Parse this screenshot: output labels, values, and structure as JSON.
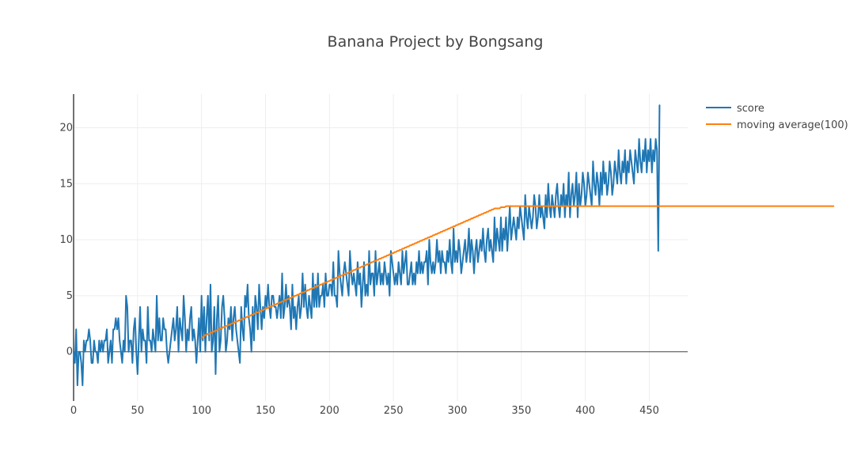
{
  "chart_data": {
    "type": "line",
    "title": "Banana Project by Bongsang",
    "xlabel": "",
    "ylabel": "",
    "xlim": [
      0,
      480
    ],
    "ylim": [
      -4.4,
      23.0
    ],
    "x_ticks": [
      0,
      50,
      100,
      150,
      200,
      250,
      300,
      350,
      400,
      450
    ],
    "y_ticks": [
      0,
      5,
      10,
      15,
      20
    ],
    "grid": true,
    "legend_position": "top-right",
    "series": [
      {
        "name": "score",
        "color": "#1f77b4",
        "x_start": 0,
        "values": [
          0,
          -1,
          2,
          -3,
          0,
          0,
          -1,
          -3,
          1,
          0,
          1,
          1,
          2,
          1,
          -1,
          -1,
          1,
          0,
          0,
          -1,
          1,
          0,
          1,
          0,
          1,
          1,
          2,
          -1,
          0,
          1,
          -1,
          2,
          2,
          3,
          2,
          3,
          1,
          0,
          -1,
          1,
          0,
          5,
          4,
          0,
          1,
          1,
          -1,
          2,
          3,
          0,
          -2,
          1,
          4,
          0,
          2,
          1,
          1,
          -1,
          4,
          1,
          1,
          0,
          2,
          1,
          0,
          5,
          1,
          3,
          1,
          1,
          3,
          2,
          2,
          0,
          -1,
          0,
          1,
          2,
          3,
          1,
          2,
          4,
          0,
          3,
          2,
          1,
          5,
          3,
          0,
          2,
          1,
          3,
          4,
          1,
          2,
          1,
          -1,
          1,
          3,
          0,
          5,
          1,
          4,
          0,
          3,
          5,
          1,
          6,
          0,
          1,
          4,
          -2,
          3,
          5,
          0,
          1,
          4,
          5,
          3,
          0,
          1,
          3,
          2,
          4,
          1,
          3,
          4,
          2,
          1,
          0,
          -1,
          4,
          2,
          1,
          5,
          4,
          6,
          3,
          2,
          0,
          4,
          1,
          5,
          4,
          2,
          6,
          4,
          2,
          4,
          3,
          5,
          4,
          6,
          4,
          3,
          5,
          5,
          4,
          4,
          3,
          4,
          5,
          3,
          7,
          3,
          4,
          6,
          4,
          5,
          4,
          2,
          6,
          3,
          4,
          2,
          4,
          5,
          3,
          4,
          7,
          4,
          6,
          4,
          3,
          5,
          4,
          3,
          7,
          4,
          6,
          4,
          7,
          4,
          5,
          5,
          6,
          4,
          7,
          5,
          5,
          6,
          6,
          5,
          8,
          5,
          5,
          4,
          9,
          7,
          6,
          5,
          7,
          8,
          7,
          6,
          5,
          9,
          7,
          6,
          7,
          6,
          5,
          8,
          6,
          7,
          4,
          6,
          8,
          5,
          6,
          5,
          9,
          6,
          7,
          7,
          5,
          9,
          6,
          7,
          8,
          6,
          7,
          6,
          8,
          7,
          6,
          7,
          5,
          9,
          8,
          7,
          6,
          7,
          6,
          8,
          7,
          6,
          9,
          7,
          8,
          9,
          6,
          6,
          7,
          8,
          6,
          7,
          6,
          8,
          7,
          9,
          7,
          8,
          7,
          8,
          8,
          9,
          6,
          10,
          8,
          7,
          8,
          7,
          8,
          10,
          8,
          9,
          7,
          9,
          8,
          8,
          7,
          9,
          8,
          10,
          8,
          7,
          11,
          8,
          9,
          8,
          10,
          9,
          7,
          8,
          9,
          10,
          8,
          9,
          11,
          8,
          10,
          9,
          7,
          9,
          10,
          8,
          9,
          10,
          9,
          11,
          9,
          8,
          10,
          11,
          9,
          10,
          9,
          8,
          12,
          9,
          11,
          10,
          9,
          12,
          9,
          11,
          10,
          12,
          9,
          11,
          13,
          10,
          11,
          12,
          11,
          10,
          12,
          11,
          13,
          12,
          11,
          10,
          14,
          12,
          11,
          13,
          12,
          11,
          12,
          14,
          13,
          11,
          12,
          14,
          12,
          13,
          12,
          11,
          14,
          12,
          15,
          13,
          12,
          14,
          13,
          12,
          14,
          15,
          13,
          12,
          14,
          13,
          15,
          12,
          14,
          13,
          16,
          12,
          14,
          15,
          13,
          14,
          16,
          12,
          15,
          13,
          14,
          16,
          15,
          13,
          14,
          16,
          15,
          14,
          13,
          17,
          15,
          14,
          16,
          15,
          13,
          16,
          14,
          17,
          15,
          16,
          14,
          15,
          17,
          16,
          14,
          15,
          17,
          16,
          15,
          18,
          16,
          15,
          17,
          16,
          18,
          15,
          17,
          16,
          18,
          17,
          16,
          15,
          18,
          17,
          16,
          19,
          17,
          16,
          18,
          17,
          19,
          16,
          18,
          17,
          19,
          16,
          18,
          17,
          19,
          18,
          9,
          22
        ]
      },
      {
        "name": "moving average(100)",
        "color": "#ff7f0e",
        "x_start": 100,
        "values": [
          1.2,
          1.3,
          1.4,
          1.5,
          1.5,
          1.6,
          1.6,
          1.7,
          1.7,
          1.8,
          1.8,
          1.9,
          1.9,
          2.0,
          2.0,
          2.1,
          2.1,
          2.2,
          2.2,
          2.3,
          2.3,
          2.4,
          2.4,
          2.5,
          2.5,
          2.6,
          2.6,
          2.7,
          2.7,
          2.8,
          2.8,
          2.9,
          2.9,
          3.0,
          3.0,
          3.1,
          3.1,
          3.2,
          3.2,
          3.3,
          3.3,
          3.4,
          3.4,
          3.5,
          3.5,
          3.6,
          3.6,
          3.7,
          3.7,
          3.8,
          3.8,
          3.9,
          3.9,
          4.0,
          4.0,
          4.1,
          4.1,
          4.2,
          4.2,
          4.3,
          4.3,
          4.4,
          4.4,
          4.5,
          4.5,
          4.6,
          4.6,
          4.7,
          4.7,
          4.8,
          4.8,
          4.9,
          4.9,
          5.0,
          5.0,
          5.1,
          5.1,
          5.2,
          5.2,
          5.3,
          5.3,
          5.4,
          5.4,
          5.5,
          5.5,
          5.6,
          5.6,
          5.7,
          5.7,
          5.8,
          5.8,
          5.9,
          5.9,
          6.0,
          6.0,
          6.1,
          6.1,
          6.2,
          6.2,
          6.3,
          6.3,
          6.4,
          6.4,
          6.5,
          6.5,
          6.6,
          6.6,
          6.7,
          6.7,
          6.8,
          6.8,
          6.9,
          6.9,
          7.0,
          7.0,
          7.1,
          7.1,
          7.2,
          7.2,
          7.3,
          7.3,
          7.4,
          7.4,
          7.5,
          7.5,
          7.6,
          7.6,
          7.7,
          7.7,
          7.8,
          7.8,
          7.9,
          7.9,
          8.0,
          8.0,
          8.1,
          8.1,
          8.2,
          8.2,
          8.3,
          8.3,
          8.4,
          8.4,
          8.5,
          8.5,
          8.6,
          8.6,
          8.7,
          8.7,
          8.8,
          8.8,
          8.9,
          8.9,
          9.0,
          9.0,
          9.1,
          9.1,
          9.2,
          9.2,
          9.3,
          9.3,
          9.4,
          9.4,
          9.5,
          9.5,
          9.6,
          9.6,
          9.7,
          9.7,
          9.8,
          9.8,
          9.9,
          9.9,
          10.0,
          10.0,
          10.1,
          10.1,
          10.2,
          10.2,
          10.3,
          10.3,
          10.4,
          10.4,
          10.5,
          10.5,
          10.6,
          10.6,
          10.7,
          10.7,
          10.8,
          10.8,
          10.9,
          10.9,
          11.0,
          11.0,
          11.1,
          11.1,
          11.2,
          11.2,
          11.3,
          11.3,
          11.4,
          11.4,
          11.5,
          11.5,
          11.6,
          11.6,
          11.7,
          11.7,
          11.8,
          11.8,
          11.9,
          11.9,
          12.0,
          12.0,
          12.1,
          12.1,
          12.2,
          12.2,
          12.3,
          12.3,
          12.4,
          12.4,
          12.5,
          12.5,
          12.6,
          12.6,
          12.7,
          12.7,
          12.8,
          12.8,
          12.8,
          12.8,
          12.8,
          12.9,
          12.9,
          12.9,
          12.9,
          13.0,
          13.0,
          13.0,
          13.0,
          13.0,
          13.0,
          13.0,
          13.0,
          13.0,
          13.0,
          13.0,
          13.0,
          13.0,
          13.0,
          13.0,
          13.0,
          13.0,
          13.0,
          13.0,
          13.0,
          13.0,
          13.0,
          13.0,
          13.0,
          13.0,
          13.0,
          13.0,
          13.0,
          13.0,
          13.0,
          13.0,
          13.0,
          13.0,
          13.0,
          13.0,
          13.0,
          13.0,
          13.0,
          13.0,
          13.0,
          13.0,
          13.0,
          13.0,
          13.0,
          13.0,
          13.0,
          13.0,
          13.0,
          13.0,
          13.0,
          13.0,
          13.0,
          13.0,
          13.0,
          13.0,
          13.0,
          13.0,
          13.0,
          13.0,
          13.0,
          13.0,
          13.0,
          13.0,
          13.0,
          13.0,
          13.0,
          13.0,
          13.0,
          13.0,
          13.0,
          13.0,
          13.0,
          13.0,
          13.0,
          13.0,
          13.0,
          13.0,
          13.0,
          13.0,
          13.0,
          13.0,
          13.0,
          13.0,
          13.0,
          13.0,
          13.0,
          13.0,
          13.0,
          13.0,
          13.0,
          13.0,
          13.0,
          13.0,
          13.0,
          13.0,
          13.0,
          13.0,
          13.0,
          13.0,
          13.0,
          13.0,
          13.0,
          13.0,
          13.0,
          13.0,
          13.0,
          13.0,
          13.0,
          13.0,
          13.0,
          13.0,
          13.0,
          13.0,
          13.0,
          13.0,
          13.0,
          13.0,
          13.0,
          13.0,
          13.0,
          13.0,
          13.0,
          13.0,
          13.0,
          13.0,
          13.0,
          13.0,
          13.0,
          13.0,
          13.0,
          13.0,
          13.0,
          13.0,
          13.0,
          13.0,
          13.0,
          13.0,
          13.0,
          13.0,
          13.0,
          13.0,
          13.0,
          13.0,
          13.0,
          13.0,
          13.0,
          13.0,
          13.0,
          13.0,
          13.0,
          13.0,
          13.0,
          13.0,
          13.0,
          13.0,
          13.0,
          13.0,
          13.0,
          13.0,
          13.0,
          13.0,
          13.0,
          13.0,
          13.0,
          13.0,
          13.0,
          13.0,
          13.0,
          13.0,
          13.0,
          13.0,
          13.0,
          13.0,
          13.0,
          13.0,
          13.0,
          13.0,
          13.0,
          13.0,
          13.0,
          13.0,
          13.0,
          13.0,
          13.0,
          13.0,
          13.0,
          13.0,
          13.0,
          13.0,
          13.0,
          13.0,
          13.0,
          13.0,
          13.0,
          13.0,
          13.0,
          13.0,
          13.0,
          13.0,
          13.0,
          13.0,
          13.0,
          13.0,
          13.0,
          13.0,
          13.0,
          13.0,
          13.0,
          13.0,
          13.0,
          13.0,
          13.0,
          13.0,
          13.0,
          13.0,
          13.0,
          13.0,
          13.0,
          13.0,
          13.0,
          13.0,
          13.0,
          13.0,
          13.0,
          13.0,
          13.0,
          13.0,
          13.0,
          13.0,
          13.0,
          13.0,
          13.0,
          13.0,
          13.0,
          13.0,
          13.0,
          13.0,
          13.0,
          13.0,
          13.0,
          13.0,
          13.0,
          13.0,
          13.0,
          13.0,
          13.0,
          13.0,
          13.0,
          13.0,
          13.0,
          13.0,
          13.0,
          13.0,
          13.0,
          13.0,
          13.0,
          13.0
        ]
      }
    ]
  }
}
